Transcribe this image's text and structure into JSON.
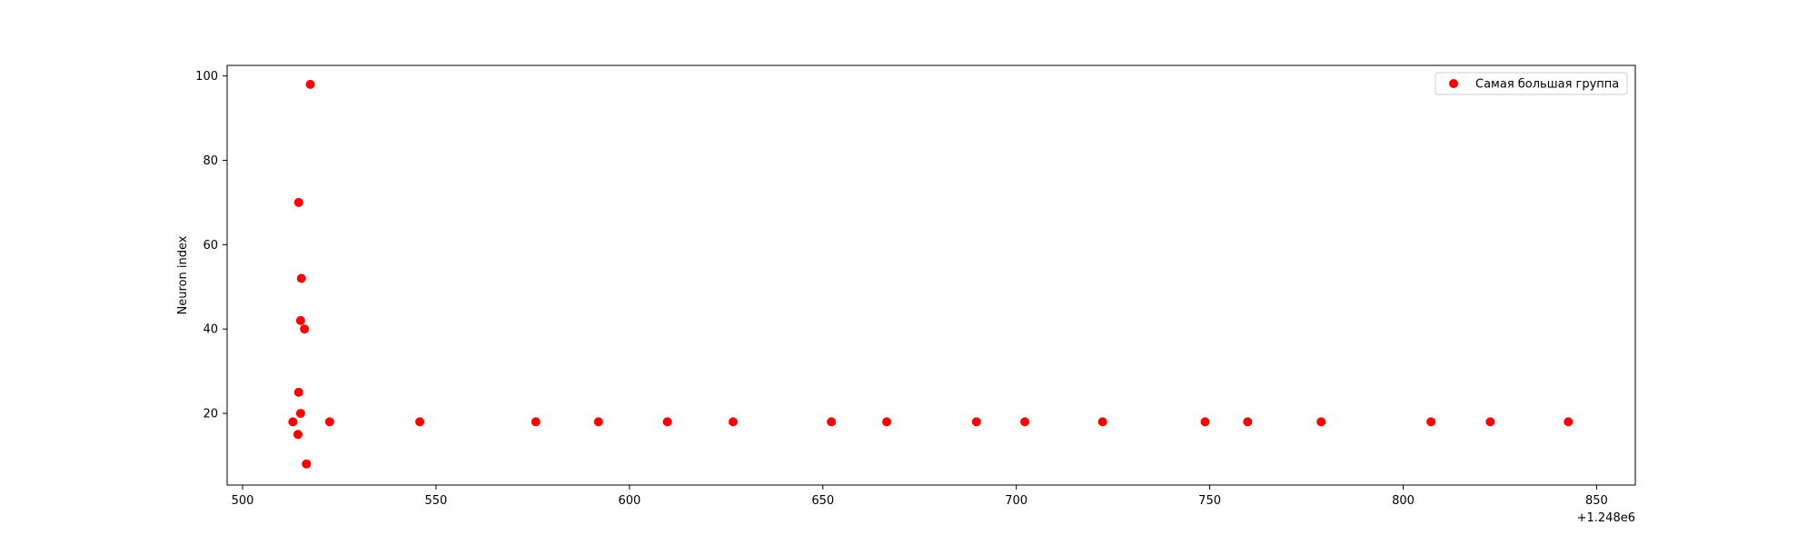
{
  "chart_data": {
    "type": "scatter",
    "title": "",
    "xlabel": "",
    "ylabel": "Neuron index",
    "x_offset_label": "+1.248e6",
    "xlim": [
      496,
      860
    ],
    "ylim": [
      3,
      102.5
    ],
    "x_ticks": [
      500,
      550,
      600,
      650,
      700,
      750,
      800,
      850
    ],
    "y_ticks": [
      20,
      40,
      60,
      80,
      100
    ],
    "grid": false,
    "legend_position": "top-right",
    "colors": {
      "series": "#ff0000",
      "axes": "#000000",
      "legend_border": "#cccccc"
    },
    "series": [
      {
        "name": "Самая большая группа",
        "x": [
          517.5,
          514.5,
          515.2,
          515.0,
          516.0,
          514.5,
          515.0,
          513.0,
          514.3,
          516.5,
          522.5,
          545.8,
          575.8,
          592.0,
          609.8,
          626.8,
          652.2,
          666.5,
          689.7,
          702.2,
          722.3,
          748.8,
          759.8,
          778.8,
          807.2,
          822.5,
          842.7
        ],
        "y": [
          98,
          70,
          52,
          42,
          40,
          25,
          20,
          18,
          15,
          8,
          18,
          18,
          18,
          18,
          18,
          18,
          18,
          18,
          18,
          18,
          18,
          18,
          18,
          18,
          18,
          18,
          18
        ]
      }
    ]
  }
}
